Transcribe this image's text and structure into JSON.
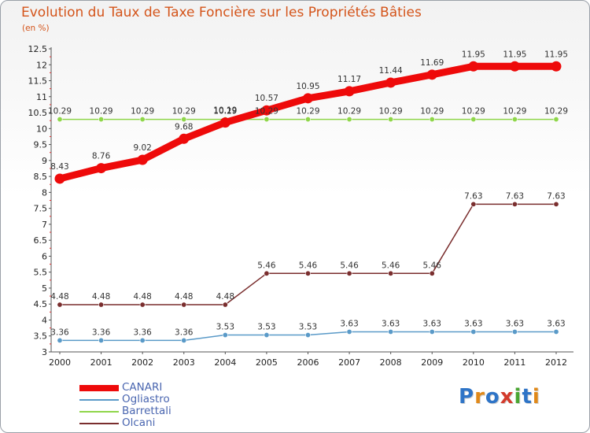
{
  "title": "Evolution du Taux de Taxe Foncière sur les Propriétés Bâties",
  "subtitle": "(en %)",
  "logo": {
    "text": "Proxiti",
    "letter_colors": [
      "#2e74c7",
      "#e0891a",
      "#2e74c7",
      "#d33b2c",
      "#4aa632",
      "#2e74c7",
      "#e0891a"
    ]
  },
  "chart_data": {
    "type": "line",
    "title": "Evolution du Taux de Taxe Foncière sur les Propriétés Bâties",
    "ylabel": "(en %)",
    "xlabel": "",
    "ylim": [
      3,
      12.5
    ],
    "ytick_step": 0.5,
    "grid": false,
    "legend_position": "bottom-left",
    "categories": [
      "2000",
      "2001",
      "2002",
      "2003",
      "2004",
      "2005",
      "2006",
      "2007",
      "2008",
      "2009",
      "2010",
      "2011",
      "2012"
    ],
    "series": [
      {
        "name": "Ogliastro",
        "color": "#5a9ac8",
        "style": "thin",
        "values": [
          3.36,
          3.36,
          3.36,
          3.36,
          3.53,
          3.53,
          3.53,
          3.63,
          3.63,
          3.63,
          3.63,
          3.63,
          3.63
        ],
        "labels": [
          "3.36",
          "3.36",
          "3.36",
          "3.36",
          "3.53",
          "3.53",
          "3.53",
          "3.63",
          "3.63",
          "3.63",
          "3.63",
          "3.63",
          "3.63"
        ]
      },
      {
        "name": "Barrettali",
        "color": "#8fd64a",
        "style": "thin",
        "values": [
          10.29,
          10.29,
          10.29,
          10.29,
          10.29,
          10.29,
          10.29,
          10.29,
          10.29,
          10.29,
          10.29,
          10.29,
          10.29
        ],
        "labels": [
          "10.29",
          "10.29",
          "10.29",
          "10.29",
          "10.29",
          "10.29",
          "10.29",
          "10.29",
          "10.29",
          "10.29",
          "10.29",
          "10.29",
          "10.29"
        ]
      },
      {
        "name": "Olcani",
        "color": "#7a2e2e",
        "style": "thin",
        "values": [
          4.48,
          4.48,
          4.48,
          4.48,
          4.48,
          5.46,
          5.46,
          5.46,
          5.46,
          5.46,
          7.63,
          7.63,
          7.63
        ],
        "labels": [
          "4.48",
          "4.48",
          "4.48",
          "4.48",
          "4.48",
          "5.46",
          "5.46",
          "5.46",
          "5.46",
          "5.46",
          "7.63",
          "7.63",
          "7.63"
        ]
      },
      {
        "name": "CANARI",
        "color": "#ee0a0a",
        "style": "thick",
        "values": [
          8.43,
          8.76,
          9.02,
          9.68,
          10.19,
          10.57,
          10.95,
          11.17,
          11.44,
          11.69,
          11.95,
          11.95,
          11.95
        ],
        "labels": [
          "8.43",
          "8.76",
          "9.02",
          "9.68",
          "10.19",
          "10.57",
          "10.95",
          "11.17",
          "11.44",
          "11.69",
          "11.95",
          "11.95",
          "11.95"
        ]
      }
    ]
  },
  "legend": [
    {
      "name": "CANARI",
      "color": "#ee0a0a",
      "style": "thick"
    },
    {
      "name": "Ogliastro",
      "color": "#5a9ac8",
      "style": "thin"
    },
    {
      "name": "Barrettali",
      "color": "#8fd64a",
      "style": "thin"
    },
    {
      "name": "Olcani",
      "color": "#7a2e2e",
      "style": "thin"
    }
  ]
}
